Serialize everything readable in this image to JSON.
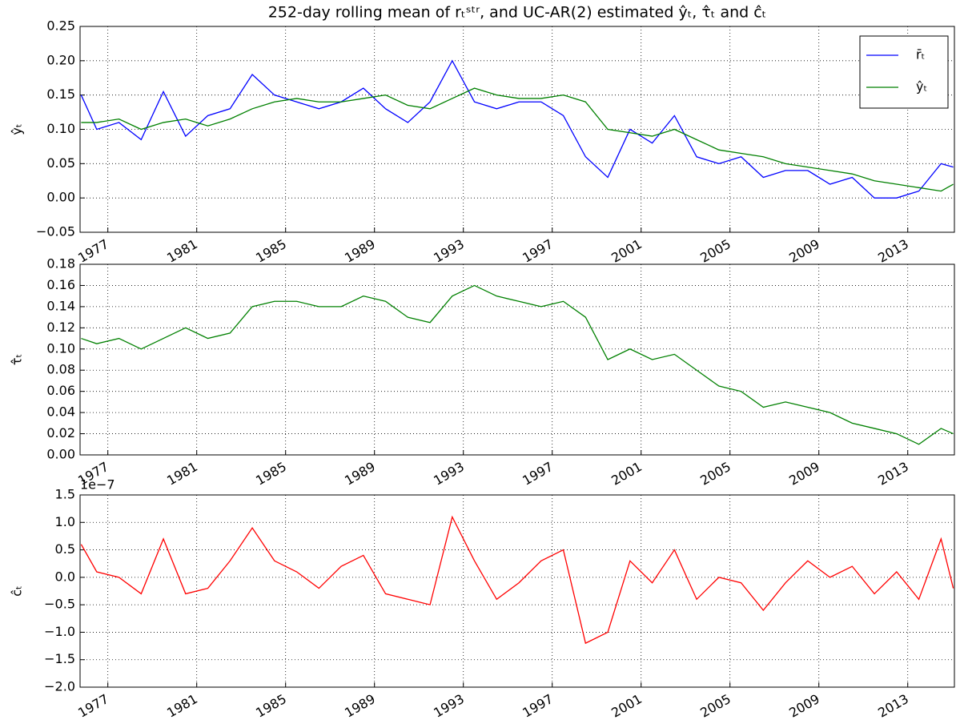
{
  "chart_data": [
    {
      "type": "line",
      "title": "252-day rolling mean of rₜˢᵗʳ, and UC-AR(2) estimated ŷₜ, τ̂ₜ and ĉₜ",
      "ylabel": "ŷₜ",
      "x": [
        1975.8,
        1976.5,
        1977.5,
        1978.5,
        1979.5,
        1980.5,
        1981.5,
        1982.5,
        1983.5,
        1984.5,
        1985.5,
        1986.5,
        1987.5,
        1988.5,
        1989.5,
        1990.5,
        1991.5,
        1992.5,
        1993.5,
        1994.5,
        1995.5,
        1996.5,
        1997.5,
        1998.5,
        1999.5,
        2000.5,
        2001.5,
        2002.5,
        2003.5,
        2004.5,
        2005.5,
        2006.5,
        2007.5,
        2008.5,
        2009.5,
        2010.5,
        2011.5,
        2012.5,
        2013.5,
        2014.5,
        2015.05
      ],
      "series": [
        {
          "name": "r̄ₜ",
          "color": "#0000ff",
          "values": [
            0.15,
            0.1,
            0.11,
            0.085,
            0.155,
            0.09,
            0.12,
            0.13,
            0.18,
            0.15,
            0.14,
            0.13,
            0.14,
            0.16,
            0.13,
            0.11,
            0.14,
            0.2,
            0.14,
            0.13,
            0.14,
            0.14,
            0.12,
            0.06,
            0.03,
            0.1,
            0.08,
            0.12,
            0.06,
            0.05,
            0.06,
            0.03,
            0.04,
            0.04,
            0.02,
            0.03,
            0.0,
            0.0,
            0.01,
            0.05,
            0.045
          ]
        },
        {
          "name": "ŷₜ",
          "color": "#008000",
          "values": [
            0.11,
            0.11,
            0.115,
            0.1,
            0.11,
            0.115,
            0.105,
            0.115,
            0.13,
            0.14,
            0.145,
            0.14,
            0.14,
            0.145,
            0.15,
            0.135,
            0.13,
            0.145,
            0.16,
            0.15,
            0.145,
            0.145,
            0.15,
            0.14,
            0.1,
            0.095,
            0.09,
            0.1,
            0.085,
            0.07,
            0.065,
            0.06,
            0.05,
            0.045,
            0.04,
            0.035,
            0.025,
            0.02,
            0.015,
            0.01,
            0.02
          ]
        }
      ],
      "xlim": [
        1975.75,
        2015.1
      ],
      "xticks": [
        1977,
        1981,
        1985,
        1989,
        1993,
        1997,
        2001,
        2005,
        2009,
        2013
      ],
      "ylim": [
        -0.05,
        0.25
      ],
      "yticks": [
        {
          "value": -0.05,
          "label": "−0.05"
        },
        {
          "value": 0,
          "label": "0.00"
        },
        0.05,
        {
          "value": 0.1,
          "label": "0.10"
        },
        0.15,
        {
          "value": 0.2,
          "label": "0.20"
        },
        0.25
      ],
      "grid": true,
      "legend": "upper right"
    },
    {
      "type": "line",
      "ylabel": "τ̂ₜ",
      "x": [
        1975.8,
        1976.5,
        1977.5,
        1978.5,
        1979.5,
        1980.5,
        1981.5,
        1982.5,
        1983.5,
        1984.5,
        1985.5,
        1986.5,
        1987.5,
        1988.5,
        1989.5,
        1990.5,
        1991.5,
        1992.5,
        1993.5,
        1994.5,
        1995.5,
        1996.5,
        1997.5,
        1998.5,
        1999.5,
        2000.5,
        2001.5,
        2002.5,
        2003.5,
        2004.5,
        2005.5,
        2006.5,
        2007.5,
        2008.5,
        2009.5,
        2010.5,
        2011.5,
        2012.5,
        2013.5,
        2014.5,
        2015.05
      ],
      "series": [
        {
          "color": "#008000",
          "values": [
            0.11,
            0.105,
            0.11,
            0.1,
            0.11,
            0.12,
            0.11,
            0.115,
            0.14,
            0.145,
            0.145,
            0.14,
            0.14,
            0.15,
            0.145,
            0.13,
            0.125,
            0.15,
            0.16,
            0.15,
            0.145,
            0.14,
            0.145,
            0.13,
            0.09,
            0.1,
            0.09,
            0.095,
            0.08,
            0.065,
            0.06,
            0.045,
            0.05,
            0.045,
            0.04,
            0.03,
            0.025,
            0.02,
            0.01,
            0.025,
            0.02
          ]
        }
      ],
      "xlim": [
        1975.75,
        2015.1
      ],
      "xticks": [
        1977,
        1981,
        1985,
        1989,
        1993,
        1997,
        2001,
        2005,
        2009,
        2013
      ],
      "ylim": [
        0,
        0.18
      ],
      "yticks": [
        {
          "value": 0,
          "label": "0.00"
        },
        0.02,
        0.04,
        0.06,
        0.08,
        {
          "value": 0.1,
          "label": "0.10"
        },
        0.12,
        0.14,
        0.16,
        0.18
      ],
      "grid": true
    },
    {
      "type": "line",
      "ylabel": "ĉₜ",
      "offset_text": "1e−7",
      "x": [
        1975.8,
        1976.5,
        1977.5,
        1978.5,
        1979.5,
        1980.5,
        1981.5,
        1982.5,
        1983.5,
        1984.5,
        1985.5,
        1986.5,
        1987.5,
        1988.5,
        1989.5,
        1990.5,
        1991.5,
        1992.5,
        1993.5,
        1994.5,
        1995.5,
        1996.5,
        1997.5,
        1998.5,
        1999.5,
        2000.5,
        2001.5,
        2002.5,
        2003.5,
        2004.5,
        2005.5,
        2006.5,
        2007.5,
        2008.5,
        2009.5,
        2010.5,
        2011.5,
        2012.5,
        2013.5,
        2014.5,
        2015.05
      ],
      "series": [
        {
          "color": "#ff0000",
          "values": [
            0.6,
            0.1,
            0.0,
            -0.3,
            0.7,
            -0.3,
            -0.2,
            0.3,
            0.9,
            0.3,
            0.1,
            -0.2,
            0.2,
            0.4,
            -0.3,
            -0.4,
            -0.5,
            1.1,
            0.3,
            -0.4,
            -0.1,
            0.3,
            0.5,
            -1.2,
            -1.0,
            0.3,
            -0.1,
            0.5,
            -0.4,
            0.0,
            -0.1,
            -0.6,
            -0.1,
            0.3,
            0.0,
            0.2,
            -0.3,
            0.1,
            -0.4,
            0.7,
            -0.2
          ]
        }
      ],
      "xlim": [
        1975.75,
        2015.1
      ],
      "xticks": [
        1977,
        1981,
        1985,
        1989,
        1993,
        1997,
        2001,
        2005,
        2009,
        2013
      ],
      "ylim": [
        -2,
        1.5
      ],
      "yticks": [
        {
          "value": -2,
          "label": "−2.0"
        },
        {
          "value": -1.5,
          "label": "−1.5"
        },
        {
          "value": -1,
          "label": "−1.0"
        },
        {
          "value": -0.5,
          "label": "−0.5"
        },
        {
          "value": 0,
          "label": "0.0"
        },
        0.5,
        {
          "value": 1,
          "label": "1.0"
        },
        1.5
      ],
      "grid": true
    }
  ]
}
